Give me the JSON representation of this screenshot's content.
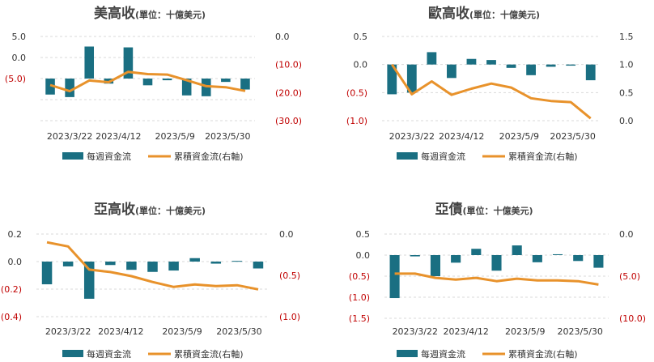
{
  "colors": {
    "bar": "#1a6f82",
    "line": "#e8922b",
    "left_axis_text": "#333333",
    "negative_axis_text": "#c00000",
    "right_axis_text": "#333333",
    "grid": "#d9d9d9"
  },
  "chart_data": [
    {
      "type": "bar",
      "title": "美高收",
      "unit": "(單位：十億美元)",
      "legend": {
        "bar": "每週資金流",
        "line": "累積資金流(右軸)",
        "position": "bottom"
      },
      "x_tick_labels": [
        "2023/3/22",
        "2023/4/12",
        "2023/5/9",
        "2023/5/30"
      ],
      "left_axis": {
        "min": -5,
        "max": 5,
        "step": 2.5,
        "ticks": [
          "5.0",
          "0.0",
          "(5.0)"
        ]
      },
      "right_axis": {
        "min": -30,
        "max": 0,
        "step": 10,
        "ticks": [
          "0.0",
          "(10.0)",
          "(20.0)",
          "(30.0)"
        ]
      },
      "series": [
        {
          "name": "每週資金流",
          "type": "bar",
          "axis": "left",
          "values": [
            -1.9,
            -2.2,
            3.8,
            -0.6,
            3.7,
            -0.8,
            -0.2,
            -2.0,
            -2.1,
            -0.4,
            -1.3
          ]
        },
        {
          "name": "累積資金流(右軸)",
          "type": "line",
          "axis": "right",
          "values": [
            -17.3,
            -19.5,
            -15.7,
            -16.3,
            -12.6,
            -13.4,
            -13.6,
            -15.6,
            -17.7,
            -18.1,
            -19.4
          ]
        }
      ]
    },
    {
      "type": "bar",
      "title": "歐高收",
      "unit": "(單位：十億美元)",
      "legend": {
        "bar": "每週資金流",
        "line": "累積資金流(右軸)",
        "position": "bottom"
      },
      "x_tick_labels": [
        "2023/3/22",
        "2023/4/12",
        "2023/5/9",
        "2023/5/30"
      ],
      "left_axis": {
        "min": -1,
        "max": 0.5,
        "step": 0.5,
        "ticks": [
          "0.5",
          "0.0",
          "(0.5)",
          "(1.0)"
        ]
      },
      "right_axis": {
        "min": 0,
        "max": 1.5,
        "step": 0.5,
        "ticks": [
          "1.5",
          "1.0",
          "0.5",
          "0.0"
        ]
      },
      "series": [
        {
          "name": "每週資金流",
          "type": "bar",
          "axis": "left",
          "values": [
            -0.53,
            -0.5,
            0.22,
            -0.24,
            0.1,
            0.08,
            -0.06,
            -0.19,
            -0.04,
            -0.02,
            -0.28
          ]
        },
        {
          "name": "累積資金流(右軸)",
          "type": "line",
          "axis": "right",
          "values": [
            1.0,
            0.47,
            0.7,
            0.46,
            0.57,
            0.66,
            0.59,
            0.4,
            0.35,
            0.33,
            0.04
          ]
        }
      ]
    },
    {
      "type": "bar",
      "title": "亞高收",
      "unit": "(單位：十億美元)",
      "legend": {
        "bar": "每週資金流",
        "line": "累積資金流(右軸)",
        "position": "bottom"
      },
      "x_tick_labels": [
        "2023/3/22",
        "2023/4/12",
        "2023/5/9",
        "2023/5/30"
      ],
      "left_axis": {
        "min": -0.4,
        "max": 0.2,
        "step": 0.2,
        "ticks": [
          "0.2",
          "0.0",
          "(0.2)",
          "(0.4)"
        ]
      },
      "right_axis": {
        "min": -1,
        "max": 0,
        "step": 0.5,
        "ticks": [
          "0.0",
          "(0.5)",
          "(1.0)"
        ]
      },
      "series": [
        {
          "name": "每週資金流",
          "type": "bar",
          "axis": "left",
          "values": [
            -0.165,
            -0.035,
            -0.27,
            -0.025,
            -0.06,
            -0.075,
            -0.065,
            0.025,
            -0.015,
            0.005,
            -0.05
          ]
        },
        {
          "name": "累積資金流(右軸)",
          "type": "line",
          "axis": "right",
          "values": [
            -0.1,
            -0.15,
            -0.43,
            -0.46,
            -0.51,
            -0.58,
            -0.64,
            -0.61,
            -0.63,
            -0.62,
            -0.67
          ]
        }
      ]
    },
    {
      "type": "bar",
      "title": "亞債",
      "unit": "(單位：十億美元)",
      "legend": {
        "bar": "每週資金流",
        "line": "累積資金流(右軸)",
        "position": "bottom"
      },
      "x_tick_labels": [
        "2023/3/22",
        "2023/4/12",
        "2023/5/9",
        "2023/5/30"
      ],
      "left_axis": {
        "min": -1.5,
        "max": 0.5,
        "step": 0.5,
        "ticks": [
          "0.5",
          "0.0",
          "(0.5)",
          "(1.0)",
          "(1.5)"
        ]
      },
      "right_axis": {
        "min": -10,
        "max": 0,
        "step": 5,
        "ticks": [
          "0.0",
          "(5.0)",
          "(10.0)"
        ]
      },
      "series": [
        {
          "name": "每週資金流",
          "type": "bar",
          "axis": "left",
          "values": [
            -1.02,
            -0.03,
            -0.5,
            -0.18,
            0.15,
            -0.37,
            0.23,
            -0.17,
            0.02,
            -0.14,
            -0.3
          ]
        },
        {
          "name": "累積資金流(右軸)",
          "type": "line",
          "axis": "right",
          "values": [
            -4.7,
            -4.7,
            -5.2,
            -5.4,
            -5.2,
            -5.6,
            -5.3,
            -5.5,
            -5.5,
            -5.6,
            -6.0
          ]
        }
      ]
    }
  ]
}
